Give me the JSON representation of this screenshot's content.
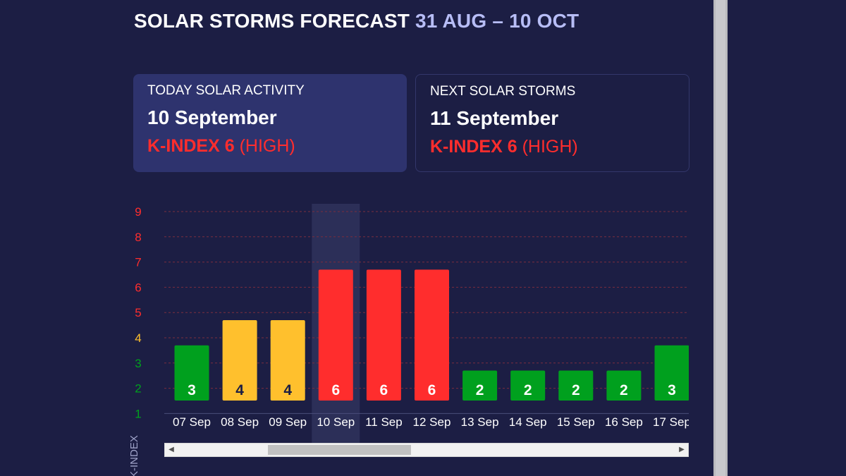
{
  "header": {
    "title": "SOLAR STORMS FORECAST",
    "date_range": "31 AUG – 10 OCT"
  },
  "today_card": {
    "label": "TODAY SOLAR ACTIVITY",
    "date": "10 September",
    "kindex_label": "K-INDEX 6",
    "level": "(HIGH)"
  },
  "next_card": {
    "label": "NEXT SOLAR STORMS",
    "date": "11 September",
    "kindex_label": "K-INDEX 6",
    "level": "(HIGH)"
  },
  "colors": {
    "low": "#00a01e",
    "moderate": "#ffc02d",
    "high": "#ff2d2d",
    "background": "#1c1e44",
    "highlight": "#2c2f58"
  },
  "chart_data": {
    "type": "bar",
    "ylabel": "K-INDEX",
    "ylim": [
      1,
      9
    ],
    "yticks": [
      "9",
      "8",
      "7",
      "6",
      "5",
      "4",
      "3",
      "2",
      "1"
    ],
    "categories": [
      "07 Sep",
      "08 Sep",
      "09 Sep",
      "10 Sep",
      "11 Sep",
      "12 Sep",
      "13 Sep",
      "14 Sep",
      "15 Sep",
      "16 Sep",
      "17 Sep"
    ],
    "values": [
      3,
      4,
      4,
      6,
      6,
      6,
      2,
      2,
      2,
      2,
      3
    ],
    "highlighted_category": "10 Sep",
    "grid": true
  },
  "scroll": {
    "left_arrow": "◀",
    "right_arrow": "▶"
  }
}
